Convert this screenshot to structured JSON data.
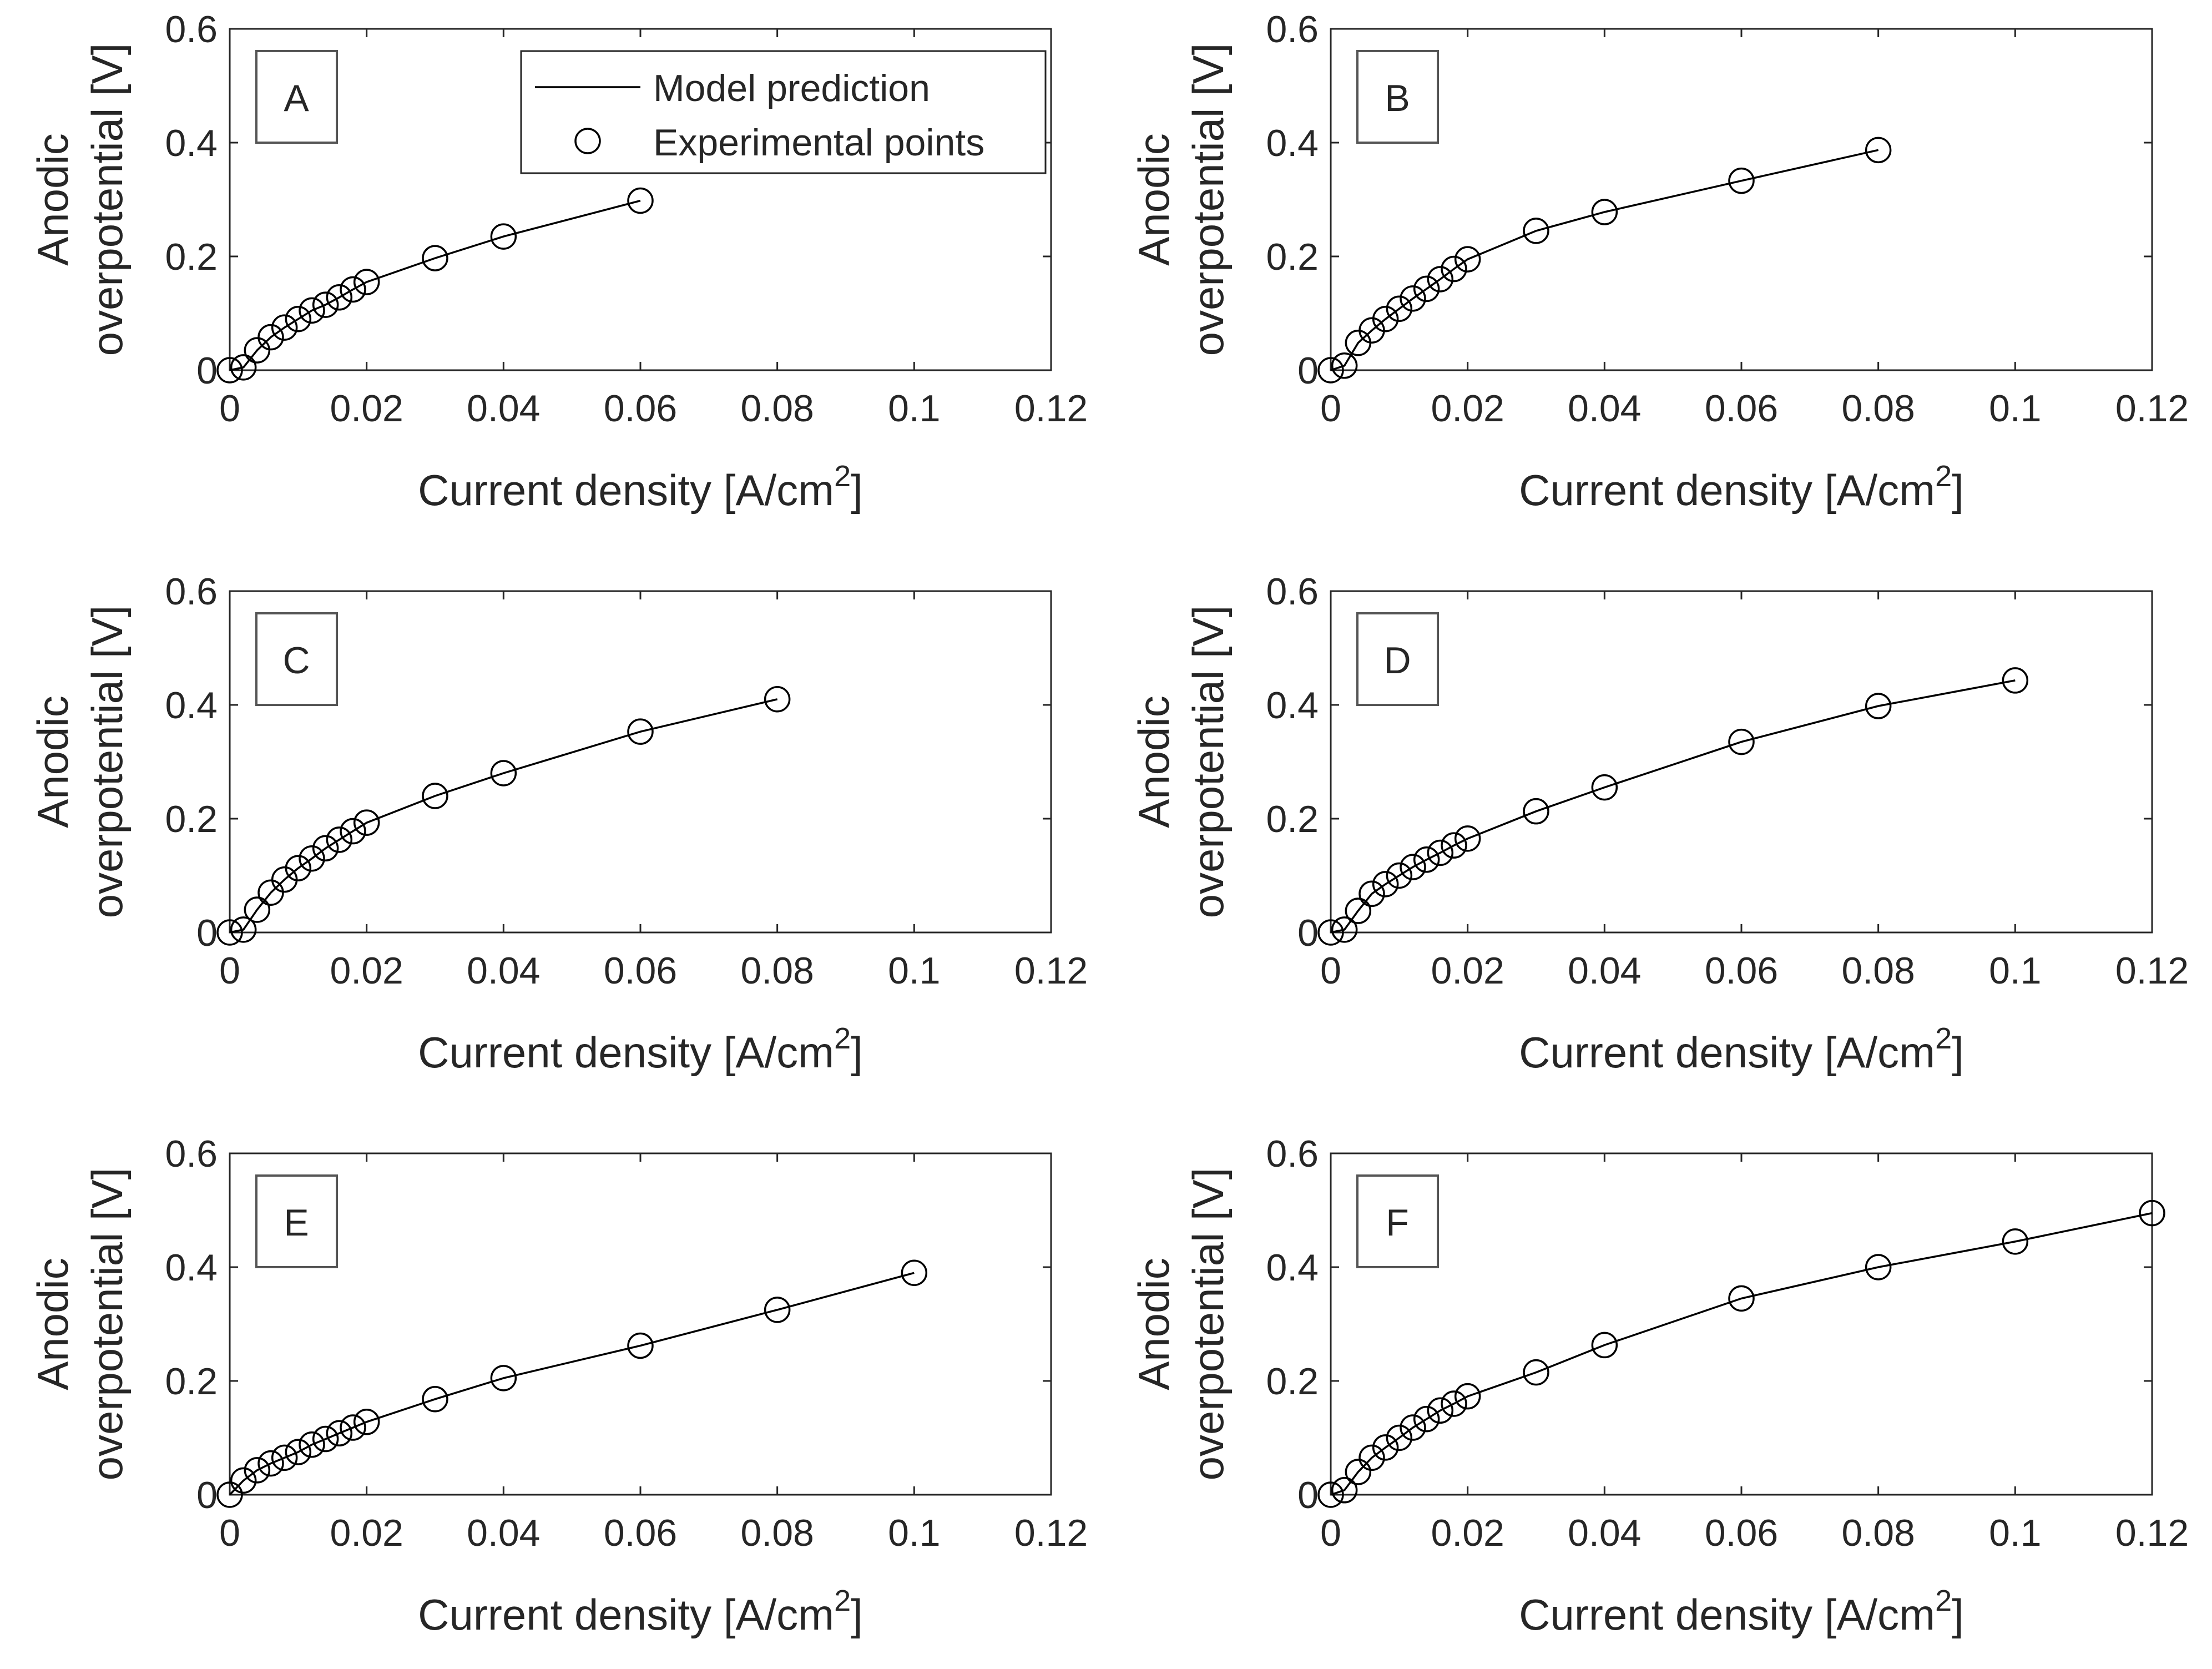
{
  "figure": {
    "legend": {
      "line_label": "Model prediction",
      "marker_label": "Experimental points"
    },
    "colors": {
      "axes": "#262626",
      "series": "#000000",
      "background": "#ffffff"
    }
  },
  "chart_data": [
    {
      "type": "line",
      "panel": "A",
      "xlabel": "Current density [A/cm",
      "xlabel_sup": "2",
      "xlabel_close": "]",
      "ylabel_line1": "Anodic",
      "ylabel_line2": "overpotential [V]",
      "xlim": [
        0,
        0.12
      ],
      "ylim": [
        0,
        0.6
      ],
      "xticks": [
        0,
        0.02,
        0.04,
        0.06,
        0.08,
        0.1,
        0.12
      ],
      "xtick_labels": [
        "0",
        "0.02",
        "0.04",
        "0.06",
        "0.08",
        "0.1",
        "0.12"
      ],
      "yticks": [
        0,
        0.2,
        0.4,
        0.6
      ],
      "ytick_labels": [
        "0",
        "0.2",
        "0.4",
        "0.6"
      ],
      "legend_position": "top-right",
      "series": [
        {
          "name": "Model prediction / Experimental points",
          "x": [
            0,
            0.002,
            0.004,
            0.006,
            0.008,
            0.01,
            0.012,
            0.014,
            0.016,
            0.018,
            0.02,
            0.03,
            0.04,
            0.06
          ],
          "y": [
            0,
            0.005,
            0.035,
            0.058,
            0.075,
            0.09,
            0.105,
            0.115,
            0.128,
            0.142,
            0.155,
            0.197,
            0.235,
            0.298
          ]
        }
      ]
    },
    {
      "type": "line",
      "panel": "B",
      "xlabel": "Current density [A/cm",
      "xlabel_sup": "2",
      "xlabel_close": "]",
      "ylabel_line1": "Anodic",
      "ylabel_line2": "overpotential [V]",
      "xlim": [
        0,
        0.12
      ],
      "ylim": [
        0,
        0.6
      ],
      "xticks": [
        0,
        0.02,
        0.04,
        0.06,
        0.08,
        0.1,
        0.12
      ],
      "xtick_labels": [
        "0",
        "0.02",
        "0.04",
        "0.06",
        "0.08",
        "0.1",
        "0.12"
      ],
      "yticks": [
        0,
        0.2,
        0.4,
        0.6
      ],
      "ytick_labels": [
        "0",
        "0.2",
        "0.4",
        "0.6"
      ],
      "series": [
        {
          "name": "Model prediction / Experimental points",
          "x": [
            0,
            0.002,
            0.004,
            0.006,
            0.008,
            0.01,
            0.012,
            0.014,
            0.016,
            0.018,
            0.02,
            0.03,
            0.04,
            0.06,
            0.08
          ],
          "y": [
            0,
            0.008,
            0.048,
            0.07,
            0.09,
            0.108,
            0.126,
            0.143,
            0.16,
            0.178,
            0.195,
            0.245,
            0.278,
            0.333,
            0.387
          ]
        }
      ]
    },
    {
      "type": "line",
      "panel": "C",
      "xlabel": "Current density [A/cm",
      "xlabel_sup": "2",
      "xlabel_close": "]",
      "ylabel_line1": "Anodic",
      "ylabel_line2": "overpotential [V]",
      "xlim": [
        0,
        0.12
      ],
      "ylim": [
        0,
        0.6
      ],
      "xticks": [
        0,
        0.02,
        0.04,
        0.06,
        0.08,
        0.1,
        0.12
      ],
      "xtick_labels": [
        "0",
        "0.02",
        "0.04",
        "0.06",
        "0.08",
        "0.1",
        "0.12"
      ],
      "yticks": [
        0,
        0.2,
        0.4,
        0.6
      ],
      "ytick_labels": [
        "0",
        "0.2",
        "0.4",
        "0.6"
      ],
      "series": [
        {
          "name": "Model prediction / Experimental points",
          "x": [
            0,
            0.002,
            0.004,
            0.006,
            0.008,
            0.01,
            0.012,
            0.014,
            0.016,
            0.018,
            0.02,
            0.03,
            0.04,
            0.06,
            0.08
          ],
          "y": [
            0,
            0.005,
            0.04,
            0.07,
            0.093,
            0.113,
            0.13,
            0.148,
            0.163,
            0.178,
            0.193,
            0.24,
            0.28,
            0.353,
            0.41
          ]
        }
      ]
    },
    {
      "type": "line",
      "panel": "D",
      "xlabel": "Current density [A/cm",
      "xlabel_sup": "2",
      "xlabel_close": "]",
      "ylabel_line1": "Anodic",
      "ylabel_line2": "overpotential [V]",
      "xlim": [
        0,
        0.12
      ],
      "ylim": [
        0,
        0.6
      ],
      "xticks": [
        0,
        0.02,
        0.04,
        0.06,
        0.08,
        0.1,
        0.12
      ],
      "xtick_labels": [
        "0",
        "0.02",
        "0.04",
        "0.06",
        "0.08",
        "0.1",
        "0.12"
      ],
      "yticks": [
        0,
        0.2,
        0.4,
        0.6
      ],
      "ytick_labels": [
        "0",
        "0.2",
        "0.4",
        "0.6"
      ],
      "series": [
        {
          "name": "Model prediction / Experimental points",
          "x": [
            0,
            0.002,
            0.004,
            0.006,
            0.008,
            0.01,
            0.012,
            0.014,
            0.016,
            0.018,
            0.02,
            0.03,
            0.04,
            0.06,
            0.08,
            0.1
          ],
          "y": [
            0,
            0.005,
            0.038,
            0.068,
            0.085,
            0.1,
            0.115,
            0.128,
            0.14,
            0.153,
            0.165,
            0.213,
            0.255,
            0.335,
            0.398,
            0.443
          ]
        }
      ]
    },
    {
      "type": "line",
      "panel": "E",
      "xlabel": "Current density [A/cm",
      "xlabel_sup": "2",
      "xlabel_close": "]",
      "ylabel_line1": "Anodic",
      "ylabel_line2": "overpotential [V]",
      "xlim": [
        0,
        0.12
      ],
      "ylim": [
        0,
        0.6
      ],
      "xticks": [
        0,
        0.02,
        0.04,
        0.06,
        0.08,
        0.1,
        0.12
      ],
      "xtick_labels": [
        "0",
        "0.02",
        "0.04",
        "0.06",
        "0.08",
        "0.1",
        "0.12"
      ],
      "yticks": [
        0,
        0.2,
        0.4,
        0.6
      ],
      "ytick_labels": [
        "0",
        "0.2",
        "0.4",
        "0.6"
      ],
      "series": [
        {
          "name": "Model prediction / Experimental points",
          "x": [
            0,
            0.002,
            0.004,
            0.006,
            0.008,
            0.01,
            0.012,
            0.014,
            0.016,
            0.018,
            0.02,
            0.03,
            0.04,
            0.06,
            0.08,
            0.1
          ],
          "y": [
            0,
            0.025,
            0.043,
            0.055,
            0.065,
            0.075,
            0.088,
            0.098,
            0.108,
            0.118,
            0.128,
            0.168,
            0.205,
            0.262,
            0.325,
            0.39
          ]
        }
      ]
    },
    {
      "type": "line",
      "panel": "F",
      "xlabel": "Current density [A/cm",
      "xlabel_sup": "2",
      "xlabel_close": "]",
      "ylabel_line1": "Anodic",
      "ylabel_line2": "overpotential [V]",
      "xlim": [
        0,
        0.12
      ],
      "ylim": [
        0,
        0.6
      ],
      "xticks": [
        0,
        0.02,
        0.04,
        0.06,
        0.08,
        0.1,
        0.12
      ],
      "xtick_labels": [
        "0",
        "0.02",
        "0.04",
        "0.06",
        "0.08",
        "0.1",
        "0.12"
      ],
      "yticks": [
        0,
        0.2,
        0.4,
        0.6
      ],
      "ytick_labels": [
        "0",
        "0.2",
        "0.4",
        "0.6"
      ],
      "series": [
        {
          "name": "Model prediction / Experimental points",
          "x": [
            0,
            0.002,
            0.004,
            0.006,
            0.008,
            0.01,
            0.012,
            0.014,
            0.016,
            0.018,
            0.02,
            0.03,
            0.04,
            0.06,
            0.08,
            0.1,
            0.12
          ],
          "y": [
            0,
            0.008,
            0.04,
            0.065,
            0.083,
            0.1,
            0.118,
            0.133,
            0.148,
            0.16,
            0.173,
            0.215,
            0.263,
            0.345,
            0.4,
            0.445,
            0.495
          ]
        }
      ]
    }
  ]
}
